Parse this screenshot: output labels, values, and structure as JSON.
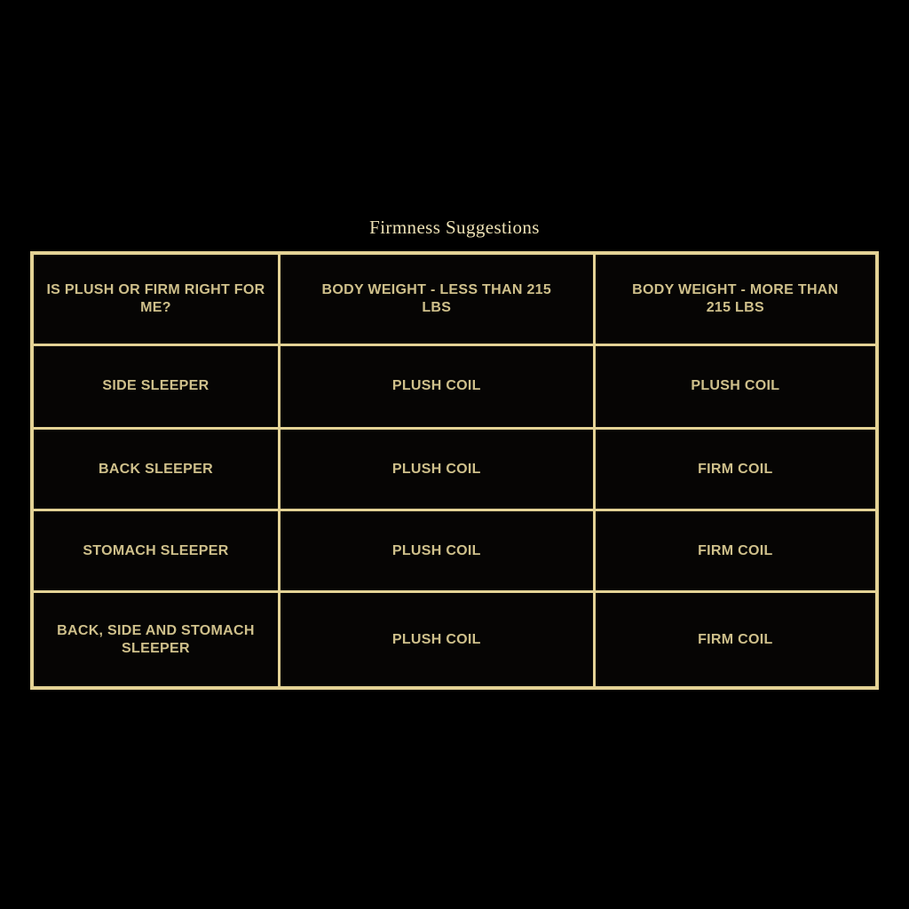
{
  "page": {
    "title": "Firmness Suggestions"
  },
  "colors": {
    "background": "#000000",
    "table_border": "#e3d295",
    "cell_background": "#060504",
    "cell_text": "#cfc08b",
    "title_text": "#ece0b4"
  },
  "table": {
    "headers": [
      "IS PLUSH OR FIRM RIGHT FOR ME?",
      "BODY WEIGHT - LESS THAN 215 LBS",
      "BODY WEIGHT - MORE THAN 215 LBS"
    ],
    "rows": [
      [
        "SIDE SLEEPER",
        "PLUSH COIL",
        "PLUSH COIL"
      ],
      [
        "BACK SLEEPER",
        "PLUSH COIL",
        "FIRM COIL"
      ],
      [
        "STOMACH SLEEPER",
        "PLUSH COIL",
        "FIRM COIL"
      ],
      [
        "BACK, SIDE AND STOMACH SLEEPER",
        "PLUSH COIL",
        "FIRM COIL"
      ]
    ]
  },
  "chart_data": {
    "type": "table",
    "title": "Firmness Suggestions",
    "columns": [
      "IS PLUSH OR FIRM RIGHT FOR ME?",
      "BODY WEIGHT - LESS THAN 215 LBS",
      "BODY WEIGHT - MORE THAN 215 LBS"
    ],
    "rows": [
      [
        "SIDE SLEEPER",
        "PLUSH COIL",
        "PLUSH COIL"
      ],
      [
        "BACK SLEEPER",
        "PLUSH COIL",
        "FIRM COIL"
      ],
      [
        "STOMACH SLEEPER",
        "PLUSH COIL",
        "FIRM COIL"
      ],
      [
        "BACK, SIDE AND STOMACH SLEEPER",
        "PLUSH COIL",
        "FIRM COIL"
      ]
    ]
  }
}
